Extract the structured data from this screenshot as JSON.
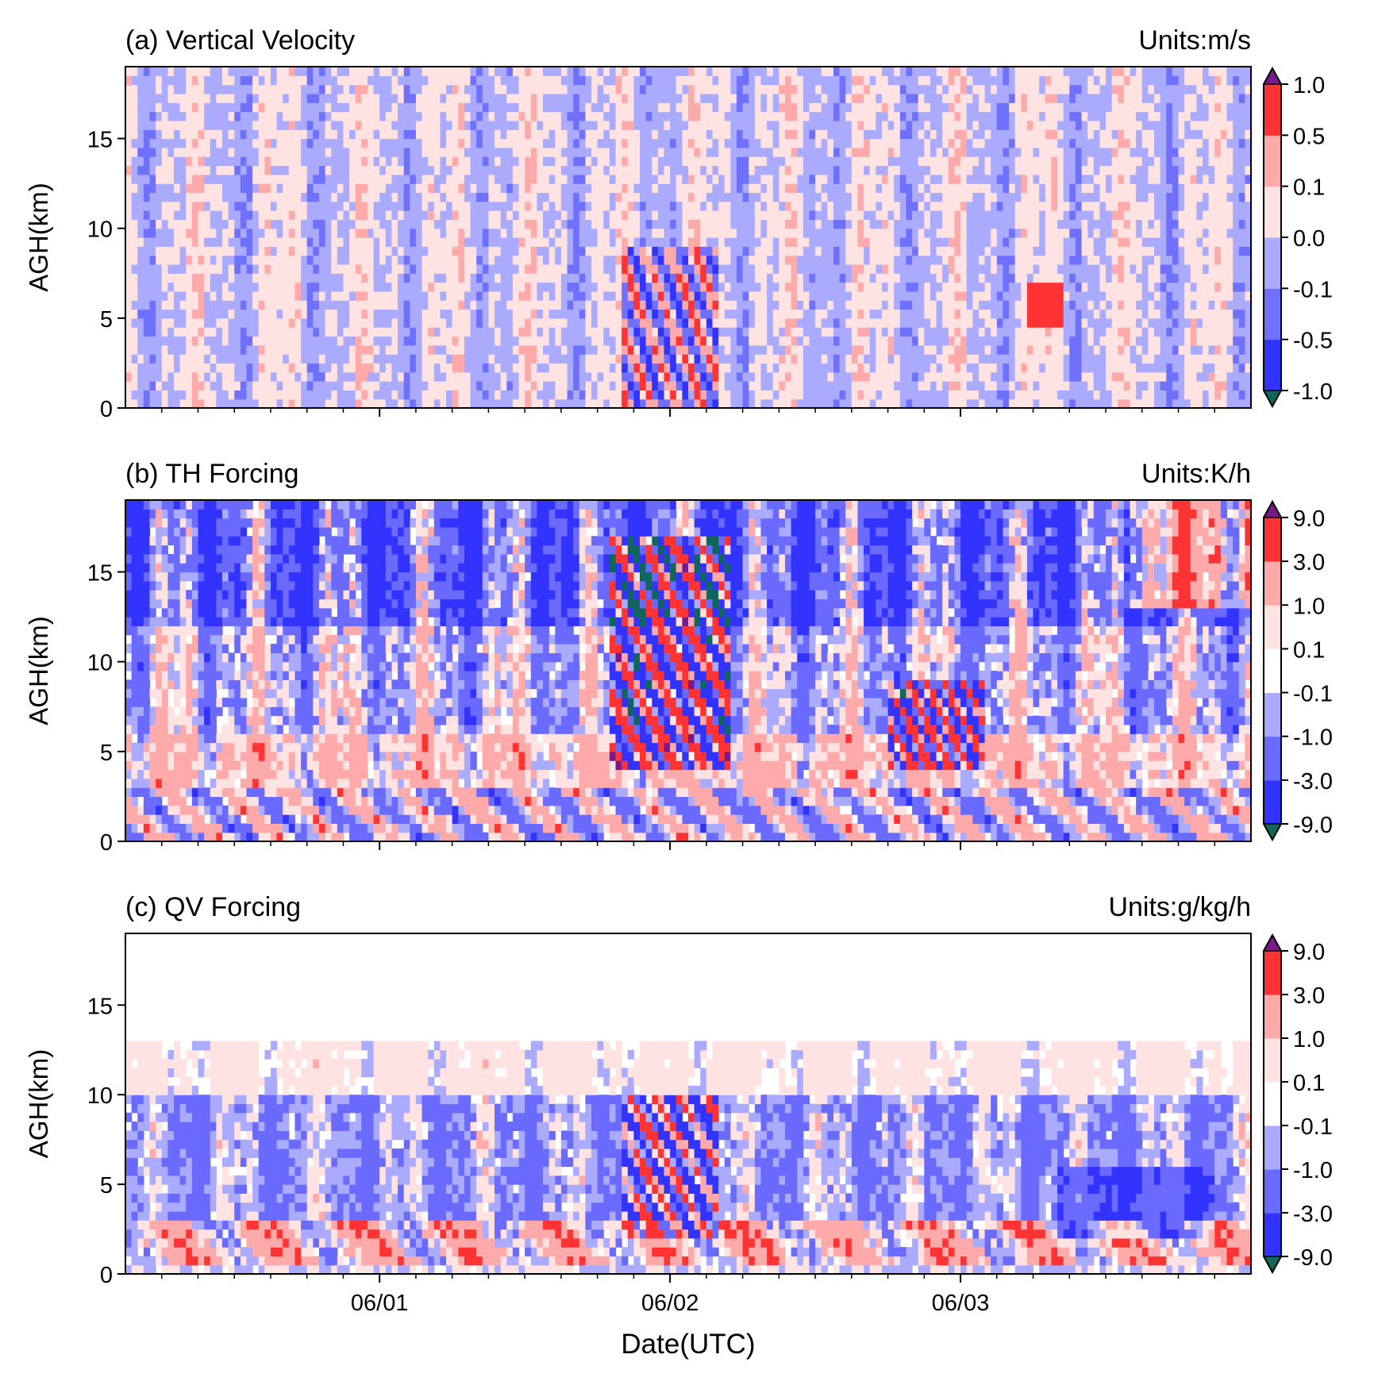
{
  "chart_data": [
    {
      "type": "heatmap",
      "title": "(a) Vertical Velocity",
      "units": "Units:m/s",
      "ylabel": "AGH(km)",
      "xlabel": "",
      "ylim": [
        0,
        19
      ],
      "y_ticks": [
        "0",
        "5",
        "10",
        "15"
      ],
      "x_range": [
        "05/31 03:00",
        "06/04 00:00"
      ],
      "x_major_ticks": [
        "06/01",
        "06/02",
        "06/03"
      ],
      "x_tick_labels_visible": false,
      "colorbar": {
        "levels": [
          "-1.0",
          "-0.5",
          "-0.1",
          "0.0",
          "0.1",
          "0.5",
          "1.0"
        ],
        "colors": [
          "#3333ff",
          "#7070ff",
          "#aaaaff",
          "#ffe2e2",
          "#ffaaaa",
          "#ff3333"
        ],
        "extend_low": "#11665c",
        "extend_high": "#7a1a8a"
      },
      "pattern": "mostly weak ascent/descent (-0.1 to 0.1) in vertical columns; stronger updrafts/downdrafts near 06/02 between 2-8 km"
    },
    {
      "type": "heatmap",
      "title": "(b) TH Forcing",
      "units": "Units:K/h",
      "ylabel": "AGH(km)",
      "xlabel": "",
      "ylim": [
        0,
        19
      ],
      "y_ticks": [
        "0",
        "5",
        "10",
        "15"
      ],
      "x_range": [
        "05/31 03:00",
        "06/04 00:00"
      ],
      "x_major_ticks": [
        "06/01",
        "06/02",
        "06/03"
      ],
      "x_tick_labels_visible": false,
      "colorbar": {
        "levels": [
          "-9.0",
          "-3.0",
          "-1.0",
          "-0.1",
          "0.1",
          "1.0",
          "3.0",
          "9.0"
        ],
        "colors": [
          "#3333ff",
          "#6a6aff",
          "#aaaaff",
          "#ffffff",
          "#ffe2e2",
          "#ffaaaa",
          "#ff3333"
        ],
        "extend_low": "#11665c",
        "extend_high": "#7a1a8a"
      },
      "pattern": "strong cooling (blue) above 10 km, heating (red) bands below 5 km; intense mixed forcing near 06/02 at 5-15 km"
    },
    {
      "type": "heatmap",
      "title": "(c) QV Forcing",
      "units": "Units:g/kg/h",
      "ylabel": "AGH(km)",
      "xlabel": "Date(UTC)",
      "ylim": [
        0,
        19
      ],
      "y_ticks": [
        "0",
        "5",
        "10",
        "15"
      ],
      "x_range": [
        "05/31 03:00",
        "06/04 00:00"
      ],
      "x_major_ticks": [
        "06/01",
        "06/02",
        "06/03"
      ],
      "x_tick_labels_visible": true,
      "colorbar": {
        "levels": [
          "-9.0",
          "-3.0",
          "-1.0",
          "-0.1",
          "0.1",
          "1.0",
          "3.0",
          "9.0"
        ],
        "colors": [
          "#3333ff",
          "#6a6aff",
          "#aaaaff",
          "#ffffff",
          "#ffe2e2",
          "#ffaaaa",
          "#ff3333"
        ],
        "extend_low": "#11665c",
        "extend_high": "#7a1a8a"
      },
      "pattern": "moistening (red) in lowest 3 km, drying (blue) at 3-10 km; no forcing above ~13 km"
    }
  ]
}
